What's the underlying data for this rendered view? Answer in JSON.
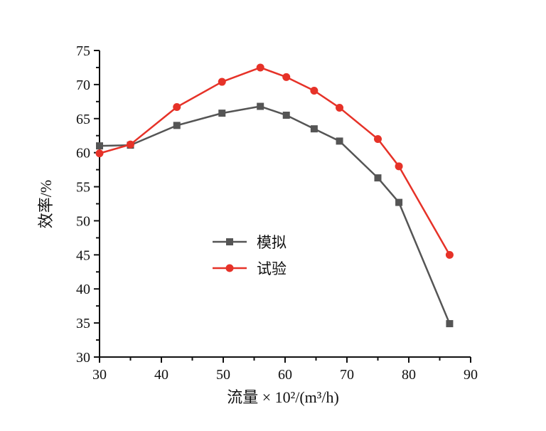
{
  "colors": {
    "simulation": "#555555",
    "experiment": "#e63228",
    "axis": "#111111"
  },
  "chart_data": {
    "type": "line",
    "xlabel": "流量 × 10²/(m³/h)",
    "ylabel": "效率/%",
    "xlim": [
      30,
      90
    ],
    "ylim": [
      30,
      75
    ],
    "x_ticks": [
      "30",
      "40",
      "50",
      "60",
      "70",
      "80",
      "90"
    ],
    "y_ticks": [
      "30",
      "35",
      "40",
      "45",
      "50",
      "55",
      "60",
      "65",
      "70",
      "75"
    ],
    "grid": false,
    "legend_position": "center",
    "series": [
      {
        "name": "模拟",
        "marker": "square",
        "color": "#555555",
        "x": [
          30,
          35,
          42.5,
          49.8,
          56,
          60.2,
          64.7,
          68.8,
          75,
          78.4,
          86.6
        ],
        "y": [
          61.0,
          61.1,
          64.0,
          65.8,
          66.8,
          65.5,
          63.5,
          61.7,
          56.3,
          52.7,
          34.9
        ]
      },
      {
        "name": "试验",
        "marker": "circle",
        "color": "#e63228",
        "x": [
          30,
          35,
          42.5,
          49.8,
          56,
          60.2,
          64.7,
          68.8,
          75,
          78.4,
          86.6
        ],
        "y": [
          59.9,
          61.2,
          66.7,
          70.4,
          72.5,
          71.1,
          69.1,
          66.6,
          62.0,
          58.0,
          45.0
        ]
      }
    ]
  }
}
